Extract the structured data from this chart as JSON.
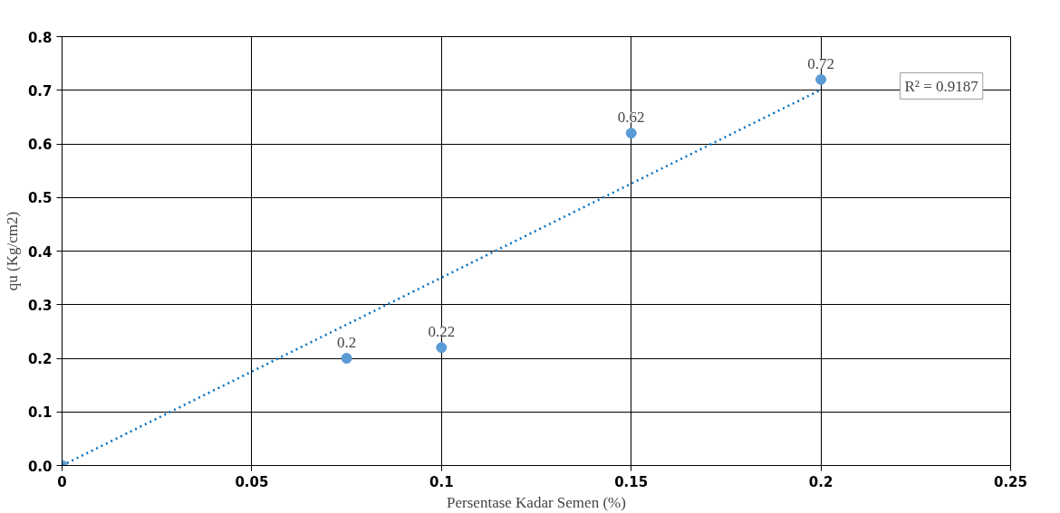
{
  "chart_data": {
    "type": "scatter",
    "xlabel": "Persentase Kadar Semen (%)",
    "ylabel": "qu (Kg/cm2)",
    "x": [
      0,
      0.075,
      0.1,
      0.15,
      0.2
    ],
    "series": [
      {
        "color": "#5b9bd5",
        "marker": "circle",
        "values": [
          0,
          0.2,
          0.22,
          0.62,
          0.72
        ],
        "value_labels": [
          null,
          "0.2",
          "0.22",
          "0.62",
          "0.72"
        ]
      },
      {
        "type": "line",
        "color": "#0070c0",
        "line_style": "dotted",
        "x": [
          0,
          0.2
        ],
        "values": [
          0,
          0.701
        ]
      }
    ],
    "annotations": [
      "R² = 0.9187"
    ],
    "xlim": [
      0,
      0.25
    ],
    "xticks": [
      0,
      0.05,
      0.1,
      0.15,
      0.2,
      0.25
    ],
    "ylim": [
      0,
      0.8
    ],
    "yticks": [
      {
        "value": 0,
        "label": "0.0"
      },
      0.1,
      0.2,
      0.3,
      0.4,
      0.5,
      0.6,
      0.7,
      0.8
    ],
    "grid": true
  }
}
